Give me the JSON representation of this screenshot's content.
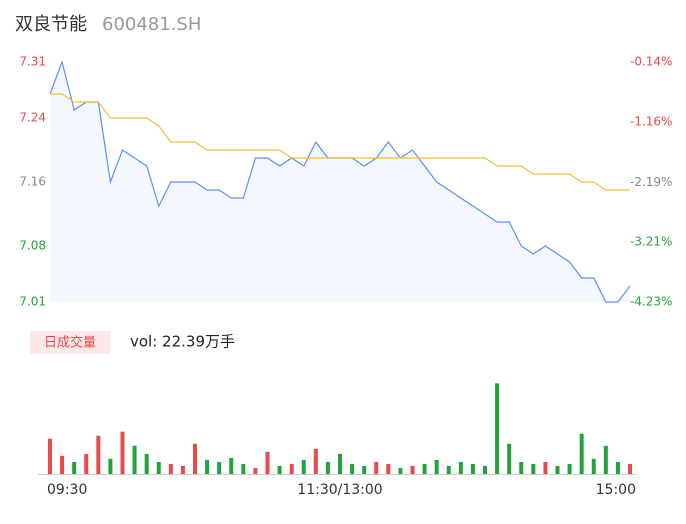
{
  "header": {
    "title": "双良节能",
    "code": "600481.SH"
  },
  "chart_data": [
    {
      "type": "line",
      "x": [
        0,
        5,
        10,
        15,
        20,
        25,
        30,
        35,
        40,
        45,
        50,
        55,
        60,
        65,
        70,
        75,
        80,
        85,
        90,
        95,
        100,
        105,
        110,
        115,
        120,
        125,
        130,
        135,
        140,
        145,
        150,
        155,
        160,
        165,
        170,
        175,
        180,
        185,
        190,
        195,
        200,
        205,
        210,
        215,
        220,
        225,
        230,
        235,
        240
      ],
      "xlim": [
        0,
        240
      ],
      "xticks": [
        {
          "value": 0,
          "label": "09:30"
        },
        {
          "value": 120,
          "label": "11:30/13:00"
        },
        {
          "value": 240,
          "label": "15:00"
        }
      ],
      "series": [
        {
          "name": "price",
          "color": "#5b8ff9",
          "fill": "#f4f7fd",
          "values": [
            7.27,
            7.31,
            7.25,
            7.26,
            7.26,
            7.16,
            7.2,
            7.19,
            7.18,
            7.13,
            7.16,
            7.16,
            7.16,
            7.15,
            7.15,
            7.14,
            7.14,
            7.19,
            7.19,
            7.18,
            7.19,
            7.18,
            7.21,
            7.19,
            7.19,
            7.19,
            7.18,
            7.19,
            7.21,
            7.19,
            7.2,
            7.18,
            7.16,
            7.15,
            7.14,
            7.13,
            7.12,
            7.11,
            7.11,
            7.08,
            7.07,
            7.08,
            7.07,
            7.06,
            7.04,
            7.04,
            7.01,
            7.01,
            7.03
          ]
        },
        {
          "name": "average",
          "color": "#f6bd3f",
          "values": [
            7.27,
            7.27,
            7.26,
            7.26,
            7.26,
            7.24,
            7.24,
            7.24,
            7.24,
            7.23,
            7.21,
            7.21,
            7.21,
            7.2,
            7.2,
            7.2,
            7.2,
            7.2,
            7.2,
            7.2,
            7.19,
            7.19,
            7.19,
            7.19,
            7.19,
            7.19,
            7.19,
            7.19,
            7.19,
            7.19,
            7.19,
            7.19,
            7.19,
            7.19,
            7.19,
            7.19,
            7.19,
            7.18,
            7.18,
            7.18,
            7.17,
            7.17,
            7.17,
            7.17,
            7.16,
            7.16,
            7.15,
            7.15,
            7.15
          ]
        }
      ],
      "ylim": [
        7.01,
        7.31
      ],
      "yticks": [
        7.31,
        7.24,
        7.16,
        7.08,
        7.01
      ],
      "y2lim": [
        -4.23,
        -0.14
      ],
      "y2ticks": [
        {
          "value": -0.14,
          "label": "-0.14%"
        },
        {
          "value": -1.16,
          "label": "-1.16%"
        },
        {
          "value": -2.19,
          "label": "-2.19%"
        },
        {
          "value": -3.21,
          "label": "-3.21%"
        },
        {
          "value": -4.23,
          "label": "-4.23%"
        }
      ],
      "tick_colors": [
        "#e84a4a",
        "#e84a4a",
        "#888888",
        "#22a33a",
        "#22a33a"
      ]
    },
    {
      "type": "bar",
      "label": "日成交量",
      "volume_label": "vol: 22.39万手",
      "values": [
        10500,
        5400,
        3600,
        6000,
        11400,
        4500,
        12600,
        8400,
        6000,
        3600,
        3000,
        2400,
        9000,
        4200,
        3600,
        4800,
        3000,
        1800,
        6600,
        2400,
        3000,
        4200,
        7500,
        3600,
        6000,
        3000,
        2400,
        3600,
        3000,
        1800,
        2400,
        3000,
        4200,
        2400,
        3600,
        3000,
        2400,
        27000,
        9000,
        3600,
        3000,
        3600,
        2400,
        3000,
        12000,
        4500,
        8400,
        3600,
        3000
      ],
      "colors": [
        "#e84a4a",
        "#e84a4a",
        "#22a33a",
        "#e84a4a",
        "#e84a4a",
        "#22a33a",
        "#e84a4a",
        "#22a33a",
        "#22a33a",
        "#22a33a",
        "#e84a4a",
        "#e84a4a",
        "#e84a4a",
        "#22a33a",
        "#22a33a",
        "#22a33a",
        "#22a33a",
        "#e84a4a",
        "#e84a4a",
        "#22a33a",
        "#e84a4a",
        "#22a33a",
        "#e84a4a",
        "#22a33a",
        "#22a33a",
        "#22a33a",
        "#22a33a",
        "#e84a4a",
        "#e84a4a",
        "#22a33a",
        "#e84a4a",
        "#22a33a",
        "#22a33a",
        "#22a33a",
        "#22a33a",
        "#22a33a",
        "#22a33a",
        "#22a33a",
        "#22a33a",
        "#22a33a",
        "#22a33a",
        "#e84a4a",
        "#22a33a",
        "#22a33a",
        "#22a33a",
        "#22a33a",
        "#22a33a",
        "#22a33a",
        "#e84a4a"
      ],
      "ylim": [
        0,
        28000
      ]
    }
  ]
}
